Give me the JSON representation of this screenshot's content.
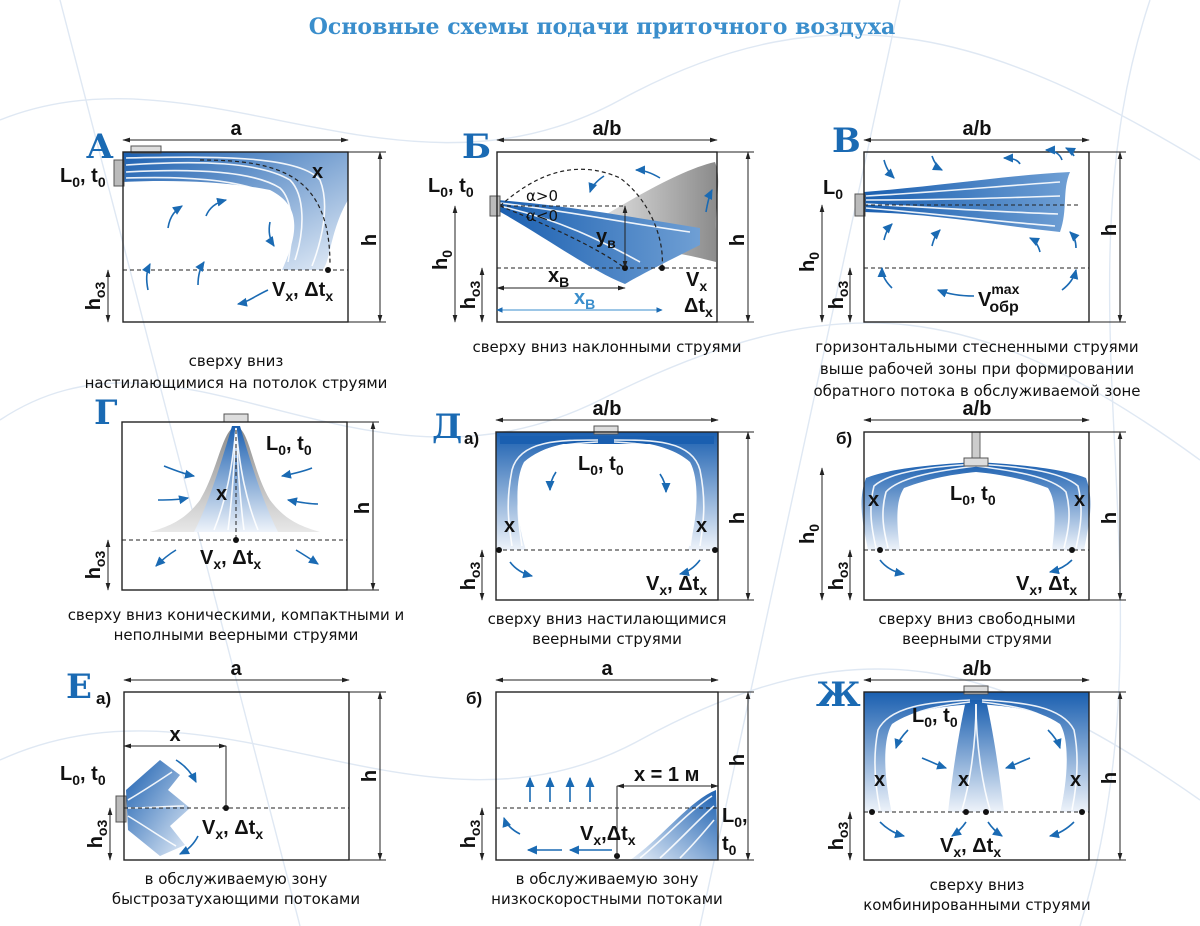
{
  "title": "Основные схемы подачи приточного воздуха",
  "colors": {
    "title": "#3a8ecc",
    "accent": "#1a6ab3",
    "jet_dark": "#1a5fb0",
    "jet_light": "#e6eef8",
    "gray": "#9a9a9a"
  },
  "panels": {
    "A": {
      "letter": "А",
      "dim_top": "a",
      "dim_right": "h",
      "dim_left": "h",
      "sub_ho": "о3",
      "source": "L",
      "source_sub": "0",
      "source_t": "t",
      "source_t_sub": "0",
      "x": "x",
      "vx": "V",
      "vx_sub": "x",
      "dt": "Δt",
      "dt_sub": "x",
      "caption": [
        "сверху вниз",
        "настилающимися на потолок струями"
      ]
    },
    "B": {
      "letter": "Б",
      "dim_top": "a/b",
      "dim_right": "h",
      "h0": "h",
      "h0_sub": "0",
      "sub_ho": "о3",
      "source": "L",
      "source_sub": "0",
      "source_t": "t",
      "source_t_sub": "0",
      "alpha_pos": "α>0",
      "alpha_neg": "α<0",
      "yv": "y",
      "yv_sub": "в",
      "xv": "x",
      "xv_sub": "В",
      "xv2": "x",
      "xv2_sub": "В",
      "vx": "V",
      "vx_sub": "x",
      "dt": "Δt",
      "dt_sub": "x",
      "caption": [
        "сверху вниз наклонными струями"
      ]
    },
    "V": {
      "letter": "В",
      "dim_top": "a/b",
      "dim_right": "h",
      "h0": "h",
      "h0_sub": "0",
      "sub_ho": "о3",
      "source": "L",
      "source_sub": "0",
      "vobr": "V",
      "vobr_sup": "max",
      "vobr_sub": "обр",
      "caption": [
        "горизонтальными стесненными струями",
        "выше рабочей зоны при формировании",
        "обратного потока в обслуживаемой зоне"
      ]
    },
    "G": {
      "letter": "Г",
      "dim_right": "h",
      "sub_ho": "о3",
      "source": "L",
      "source_sub": "0",
      "source_t": "t",
      "source_t_sub": "0",
      "x": "x",
      "vx": "V",
      "vx_sub": "x",
      "dt": "Δt",
      "dt_sub": "x",
      "caption": [
        "сверху вниз коническими, компактными и",
        "неполными веерными струями"
      ]
    },
    "D": {
      "letter": "Д",
      "sub_a": "а)",
      "dim_top": "a/b",
      "dim_right": "h",
      "sub_ho": "о3",
      "source": "L",
      "source_sub": "0",
      "source_t": "t",
      "source_t_sub": "0",
      "x1": "x",
      "x2": "x",
      "vx": "V",
      "vx_sub": "x",
      "dt": "Δt",
      "dt_sub": "x",
      "caption": [
        "сверху вниз настилающимися",
        "веерными струями"
      ]
    },
    "D2": {
      "sub_b": "б)",
      "dim_top": "a/b",
      "dim_right": "h",
      "h0": "h",
      "h0_sub": "0",
      "sub_ho": "о3",
      "source": "L",
      "source_sub": "0",
      "source_t": "t",
      "source_t_sub": "0",
      "x1": "x",
      "x2": "x",
      "vx": "V",
      "vx_sub": "x",
      "dt": "Δt",
      "dt_sub": "x",
      "caption": [
        "сверху вниз свободными",
        "веерными струями"
      ]
    },
    "E": {
      "letter": "Е",
      "sub_a": "а)",
      "dim_top": "a",
      "dim_right": "h",
      "sub_ho": "о3",
      "x": "x",
      "source": "L",
      "source_sub": "0",
      "source_t": "t",
      "source_t_sub": "0",
      "vx": "V",
      "vx_sub": "x",
      "dt": "Δt",
      "dt_sub": "x",
      "caption": [
        "в обслуживаемую зону",
        "быстрозатухающими потоками"
      ]
    },
    "E2": {
      "sub_b": "б)",
      "dim_top": "a",
      "dim_right": "h",
      "sub_ho": "о3",
      "x1m": "x = 1 м",
      "source": "L",
      "source_sub": "0",
      "comma": ",",
      "source_t": "t",
      "source_t_sub": "0",
      "vx": "V",
      "vx_sub": "x",
      "dt": "Δt",
      "dt_sub": "x",
      "caption": [
        "в обслуживаемую зону",
        "низкоскоростными потоками"
      ]
    },
    "Zh": {
      "letter": "Ж",
      "dim_top": "a/b",
      "dim_right": "h",
      "sub_ho": "о3",
      "source": "L",
      "source_sub": "0",
      "source_t": "t",
      "source_t_sub": "0",
      "x1": "x",
      "x2": "x",
      "x3": "x",
      "vx": "V",
      "vx_sub": "x",
      "dt": "Δt",
      "dt_sub": "x",
      "caption": [
        "сверху вниз",
        "комбинированными струями"
      ]
    }
  }
}
